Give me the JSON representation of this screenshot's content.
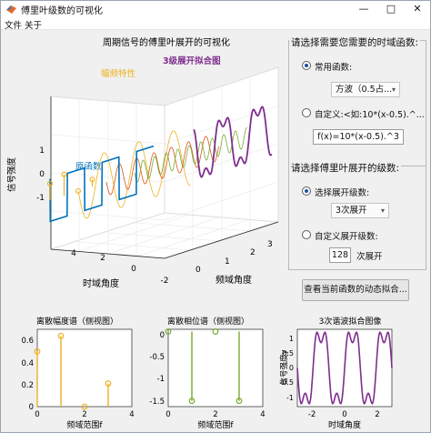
{
  "window": {
    "title": "傅里叶级数的可视化",
    "controls": [
      "—",
      "□",
      "✕"
    ]
  },
  "menu": [
    "文件",
    "关于"
  ],
  "main_plot": {
    "title": "周期信号的傅里叶展开的可视化",
    "zlabel": "信号强度",
    "xlabel": "时域角度",
    "ylabel": "频域角度",
    "annotation_amp": "幅频特性",
    "annotation_orig": "原函数",
    "annotation_fit": "3级展开拟合图",
    "x_ticks": [
      "-2",
      "0",
      "2",
      "4"
    ],
    "y_ticks": [
      "0",
      "1",
      "2",
      "3"
    ],
    "z_ticks": [
      "-1",
      "0",
      "1"
    ]
  },
  "panel_function": {
    "title": "请选择需要您需要的时域函数:",
    "radio_common": "常用函数:",
    "dropdown_value": "方波（0.5占...",
    "radio_custom": "自定义:<如:10*(x-0.5).^...",
    "custom_input": "f(x)=10*(x-0.5).^3"
  },
  "panel_order": {
    "title": "请选择傅里叶展开的级数:",
    "radio_select": "选择展开级数:",
    "dropdown_value": "3次展开",
    "radio_custom": "自定义展开级数:",
    "custom_value": "128",
    "custom_suffix": "次展开"
  },
  "dynamic_button": "查看当前函数的动态拟合...",
  "amp_plot": {
    "title": "离散幅度谱（侧视图）",
    "xlabel": "频域范围f",
    "x_ticks": [
      "0",
      "2",
      "4"
    ],
    "y_ticks": [
      "0",
      "0.2",
      "0.4",
      "0.6"
    ]
  },
  "phase_plot": {
    "title": "离散相位谱（侧视图）",
    "xlabel": "频域范围f",
    "x_ticks": [
      "0",
      "2",
      "4"
    ],
    "y_ticks": [
      "-1.5",
      "-1",
      "-0.5",
      "0"
    ]
  },
  "fit_plot": {
    "title": "3次谐波拟合图像",
    "xlabel": "时域角度",
    "ylabel": "信号强度y",
    "x_ticks": [
      "-2",
      "0",
      "2"
    ],
    "y_ticks": [
      "-1",
      "-0.5",
      "0",
      "0.5",
      "1"
    ]
  },
  "colors": {
    "blue": "#0072bd",
    "orange": "#edb120",
    "purple": "#7e2f8e",
    "green": "#77ac30",
    "dark_orange": "#d95319"
  },
  "chart_data": [
    {
      "type": "bar",
      "title": "离散幅度谱（侧视图）",
      "xlabel": "频域范围f",
      "ylabel": "",
      "x": [
        0,
        1,
        2,
        3
      ],
      "values": [
        0.5,
        0.64,
        0.0,
        0.21
      ],
      "xlim": [
        0,
        4
      ],
      "ylim": [
        0,
        0.7
      ]
    },
    {
      "type": "bar",
      "title": "离散相位谱（侧视图）",
      "xlabel": "频域范围f",
      "ylabel": "",
      "x": [
        0,
        1,
        2,
        3
      ],
      "values": [
        0,
        -1.57,
        0,
        -1.57
      ],
      "xlim": [
        0,
        4
      ],
      "ylim": [
        -1.7,
        0.05
      ]
    },
    {
      "type": "line",
      "title": "3次谐波拟合图像",
      "xlabel": "时域角度",
      "ylabel": "信号强度y",
      "series": [
        {
          "x_range": [
            -3,
            3
          ],
          "samples": 150,
          "harmonic_amplitudes": [
            0,
            1.273,
            0,
            0.424
          ],
          "period": 2
        }
      ],
      "xlim": [
        -3,
        3
      ],
      "ylim": [
        -1.3,
        1.3
      ]
    }
  ]
}
